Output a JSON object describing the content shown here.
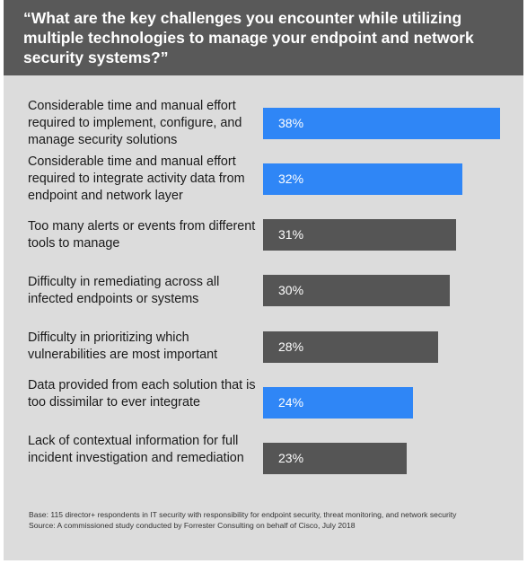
{
  "title": "“What are the key challenges you encounter while utilizing multiple technologies to manage your endpoint and network security systems?”",
  "footnote": {
    "base": "Base: 115 director+ respondents in IT security with responsibility for endpoint security, threat monitoring, and network security",
    "source": "Source: A commissioned study conducted by Forrester Consulting on behalf of Cisco, July 2018"
  },
  "colors": {
    "header_bg": "#595959",
    "panel_bg": "#dcdcdc",
    "highlight": "#2f86f6",
    "neutral": "#555555"
  },
  "chart_data": {
    "type": "bar",
    "orientation": "horizontal",
    "categories": [
      "Considerable time and manual effort required to implement, configure, and manage security solutions",
      "Considerable time and manual effort required to integrate activity data from endpoint and network layer",
      "Too many alerts or events from different tools to manage",
      "Difficulty in remediating across all infected endpoints or systems",
      "Difficulty in prioritizing which vulnerabilities are most important",
      "Data provided from each solution that is too dissimilar to ever integrate",
      "Lack of contextual information for full incident investigation and remediation"
    ],
    "values": [
      38,
      32,
      31,
      30,
      28,
      24,
      23
    ],
    "value_labels": [
      "38%",
      "32%",
      "31%",
      "30%",
      "28%",
      "24%",
      "23%"
    ],
    "highlighted": [
      true,
      true,
      false,
      false,
      false,
      true,
      false
    ],
    "xlim": [
      0,
      38
    ],
    "grid": false
  }
}
